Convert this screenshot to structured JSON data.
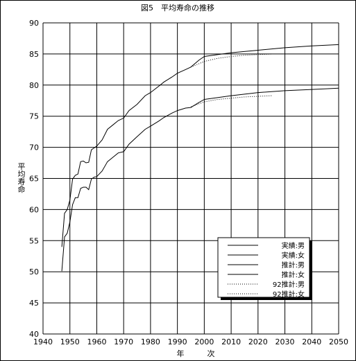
{
  "chart_data": {
    "type": "line",
    "title": "図5　平均寿命の推移",
    "xlabel": "年　　　次",
    "ylabel": "平均寿命",
    "xlim": [
      1940,
      2050
    ],
    "ylim": [
      40,
      90
    ],
    "x_ticks": [
      1940,
      1950,
      1960,
      1970,
      1980,
      1990,
      2000,
      2010,
      2020,
      2030,
      2040,
      2050
    ],
    "y_ticks": [
      40,
      45,
      50,
      55,
      60,
      65,
      70,
      75,
      80,
      85,
      90
    ],
    "grid": true,
    "legend_position": "bottom-right",
    "series": [
      {
        "name": "実績:男",
        "style": "solid",
        "x": [
          1947,
          1948,
          1949,
          1950,
          1951,
          1952,
          1953,
          1954,
          1955,
          1956,
          1957,
          1958,
          1959,
          1960,
          1962,
          1964,
          1966,
          1968,
          1970,
          1972,
          1975,
          1978,
          1980,
          1983,
          1985,
          1988,
          1990,
          1993,
          1995,
          1998,
          2000
        ],
        "y": [
          50.1,
          55.6,
          56.2,
          58.0,
          60.8,
          61.9,
          61.9,
          63.4,
          63.6,
          63.6,
          63.2,
          64.9,
          65.2,
          65.3,
          66.2,
          67.7,
          68.4,
          69.1,
          69.3,
          70.5,
          71.7,
          72.9,
          73.4,
          74.2,
          74.8,
          75.5,
          75.9,
          76.3,
          76.4,
          77.2,
          77.7
        ]
      },
      {
        "name": "実績:女",
        "style": "solid",
        "x": [
          1947,
          1948,
          1949,
          1950,
          1951,
          1952,
          1953,
          1954,
          1955,
          1956,
          1957,
          1958,
          1959,
          1960,
          1962,
          1964,
          1966,
          1968,
          1970,
          1972,
          1975,
          1978,
          1980,
          1983,
          1985,
          1988,
          1990,
          1993,
          1995,
          1998,
          2000
        ],
        "y": [
          54.0,
          59.4,
          60.0,
          61.5,
          64.9,
          65.5,
          65.7,
          67.7,
          67.8,
          67.5,
          67.6,
          69.6,
          69.9,
          70.2,
          71.2,
          72.9,
          73.6,
          74.3,
          74.7,
          75.9,
          76.9,
          78.3,
          78.8,
          79.8,
          80.5,
          81.3,
          81.9,
          82.5,
          82.9,
          84.0,
          84.6
        ]
      },
      {
        "name": "推計:男",
        "style": "solid",
        "x": [
          2000,
          2010,
          2020,
          2030,
          2040,
          2050
        ],
        "y": [
          77.7,
          78.3,
          78.8,
          79.1,
          79.3,
          79.5
        ]
      },
      {
        "name": "推計:女",
        "style": "solid",
        "x": [
          2000,
          2010,
          2020,
          2030,
          2040,
          2050
        ],
        "y": [
          84.6,
          85.2,
          85.6,
          86.0,
          86.3,
          86.5
        ]
      },
      {
        "name": "92推計:男",
        "style": "dotted",
        "x": [
          1995,
          2000,
          2005,
          2010,
          2015,
          2020,
          2025
        ],
        "y": [
          76.5,
          77.3,
          77.7,
          77.9,
          78.1,
          78.2,
          78.3
        ]
      },
      {
        "name": "92推計:女",
        "style": "dotted",
        "x": [
          1995,
          2000,
          2005,
          2010,
          2015,
          2020,
          2025
        ],
        "y": [
          82.9,
          83.8,
          84.3,
          84.6,
          84.8,
          84.9,
          85.0
        ]
      }
    ]
  }
}
